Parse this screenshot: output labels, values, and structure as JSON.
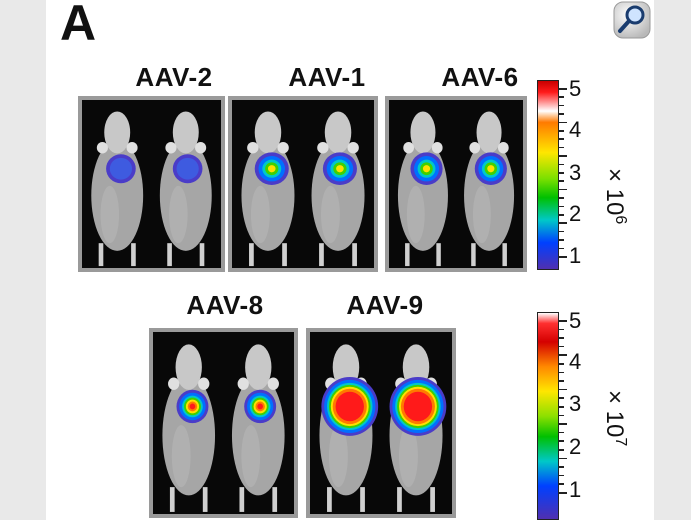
{
  "panel_letter": "A",
  "icons": {
    "magnifier": "magnifier-icon"
  },
  "serotypes_top": [
    "AAV-2",
    "AAV-1",
    "AAV-6"
  ],
  "serotypes_bottom": [
    "AAV-8",
    "AAV-9"
  ],
  "colorbars": [
    {
      "ticks": [
        "5",
        "4",
        "3",
        "2",
        "1"
      ],
      "multiplier_base": "× 10",
      "multiplier_exp": "6"
    },
    {
      "ticks": [
        "5",
        "4",
        "3",
        "2",
        "1"
      ],
      "multiplier_base": "× 10",
      "multiplier_exp": "7"
    }
  ],
  "colors": {
    "panel_border": "#9a9a9a",
    "background": "#080808",
    "mouse": "#b8b8b8"
  }
}
